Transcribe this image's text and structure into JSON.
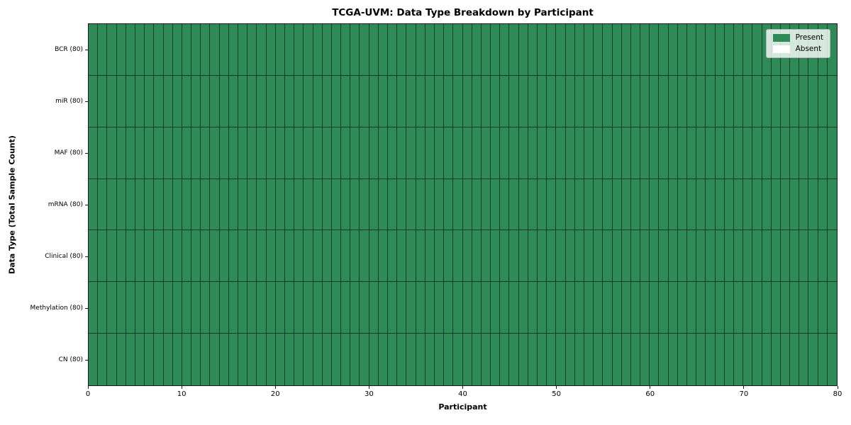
{
  "chart_data": {
    "type": "heatmap",
    "title": "TCGA-UVM: Data Type Breakdown by Participant",
    "xlabel": "Participant",
    "ylabel": "Data Type (Total Sample Count)",
    "xlim": [
      0,
      80
    ],
    "x_ticks": [
      0,
      10,
      20,
      30,
      40,
      50,
      60,
      70,
      80
    ],
    "n_participants": 80,
    "grid_on": true,
    "rows": [
      {
        "label": "BCR (80)",
        "data_type": "BCR",
        "total_sample_count": 80,
        "present_count": 80,
        "absent_count": 0
      },
      {
        "label": "miR (80)",
        "data_type": "miR",
        "total_sample_count": 80,
        "present_count": 80,
        "absent_count": 0
      },
      {
        "label": "MAF (80)",
        "data_type": "MAF",
        "total_sample_count": 80,
        "present_count": 80,
        "absent_count": 0
      },
      {
        "label": "mRNA (80)",
        "data_type": "mRNA",
        "total_sample_count": 80,
        "present_count": 80,
        "absent_count": 0
      },
      {
        "label": "Clinical (80)",
        "data_type": "Clinical",
        "total_sample_count": 80,
        "present_count": 80,
        "absent_count": 0
      },
      {
        "label": "Methylation (80)",
        "data_type": "Methylation",
        "total_sample_count": 80,
        "present_count": 80,
        "absent_count": 0
      },
      {
        "label": "CN (80)",
        "data_type": "CN",
        "total_sample_count": 80,
        "present_count": 80,
        "absent_count": 0
      }
    ],
    "legend": {
      "position": "upper right",
      "entries": [
        {
          "label": "Present",
          "color": "#2e8b57"
        },
        {
          "label": "Absent",
          "color": "#ffffff"
        }
      ]
    },
    "colors": {
      "present": "#2e8b57",
      "absent": "#ffffff",
      "cell_border": "rgba(0,0,0,0.55)",
      "axis": "#1a1a1a"
    }
  }
}
